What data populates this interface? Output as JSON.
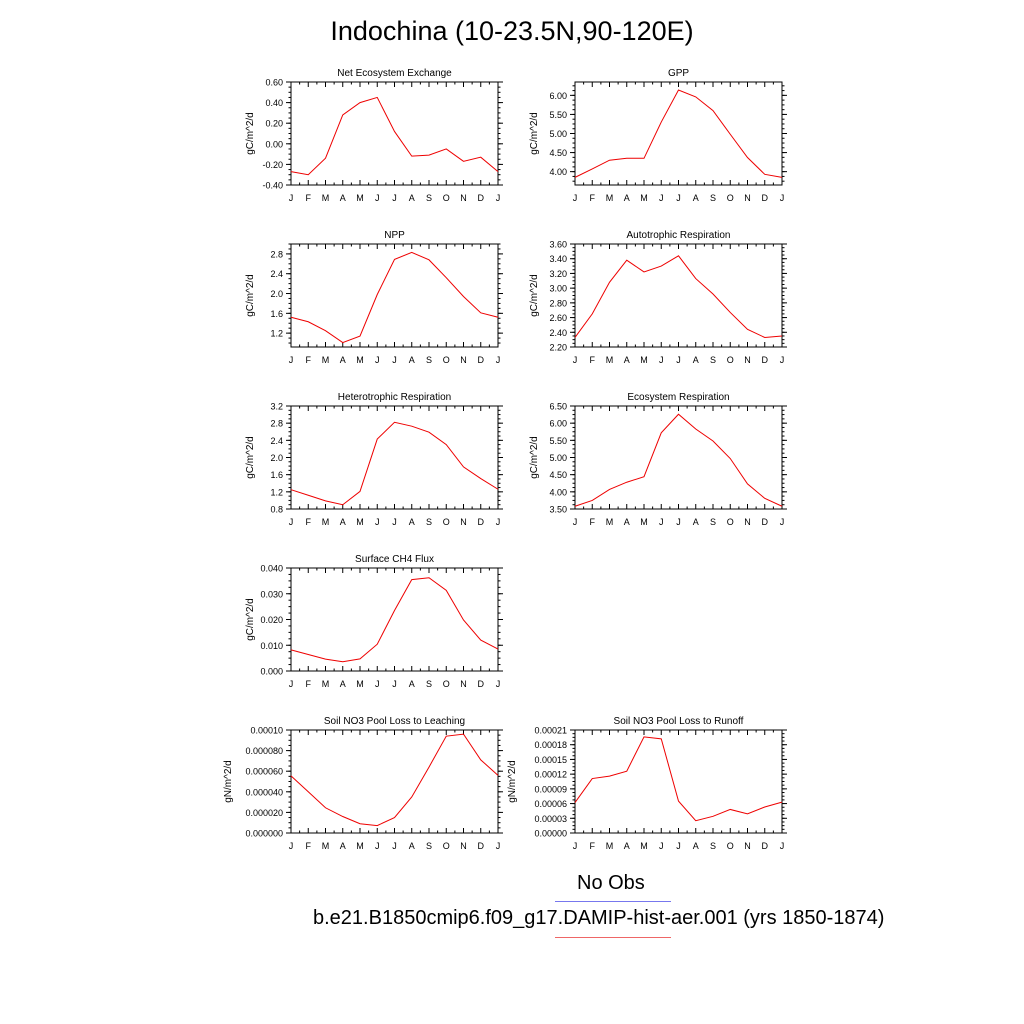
{
  "title": "Indochina (10-23.5N,90-120E)",
  "legend": {
    "obs_label": "No Obs",
    "case_label": "b.e21.B1850cmip6.f09_g17.DAMIP-hist-aer.001 (yrs 1850-1874)",
    "obs_color": "#7777ee",
    "case_color": "#ee6666"
  },
  "chart_data": [
    {
      "type": "line",
      "title": "Net Ecosystem Exchange",
      "ylabel": "gC/m^2/d",
      "categories": [
        "J",
        "F",
        "M",
        "A",
        "M",
        "J",
        "J",
        "A",
        "S",
        "O",
        "N",
        "D",
        "J"
      ],
      "values": [
        -0.27,
        -0.3,
        -0.14,
        0.28,
        0.4,
        0.45,
        0.12,
        -0.12,
        -0.11,
        -0.05,
        -0.17,
        -0.13,
        -0.27
      ],
      "ylim": [
        -0.4,
        0.6
      ],
      "yticks": [
        "-0.40",
        "-0.20",
        "0.00",
        "0.20",
        "0.40",
        "0.60"
      ],
      "line_color": "#ee0000"
    },
    {
      "type": "line",
      "title": "GPP",
      "ylabel": "gC/m^2/d",
      "categories": [
        "J",
        "F",
        "M",
        "A",
        "M",
        "J",
        "J",
        "A",
        "S",
        "O",
        "N",
        "D",
        "J"
      ],
      "values": [
        3.85,
        4.07,
        4.3,
        4.35,
        4.35,
        5.3,
        6.14,
        5.96,
        5.6,
        4.98,
        4.37,
        3.93,
        3.85
      ],
      "ylim": [
        3.65,
        6.35
      ],
      "yticks": [
        "4.00",
        "4.50",
        "5.00",
        "5.50",
        "6.00"
      ],
      "line_color": "#ee0000"
    },
    {
      "type": "line",
      "title": "NPP",
      "ylabel": "gC/m^2/d",
      "categories": [
        "J",
        "F",
        "M",
        "A",
        "M",
        "J",
        "J",
        "A",
        "S",
        "O",
        "N",
        "D",
        "J"
      ],
      "values": [
        1.52,
        1.43,
        1.25,
        1.01,
        1.14,
        1.98,
        2.69,
        2.83,
        2.68,
        2.32,
        1.94,
        1.61,
        1.52
      ],
      "ylim": [
        0.92,
        3.0
      ],
      "yticks": [
        "1.2",
        "1.6",
        "2.0",
        "2.4",
        "2.8"
      ],
      "line_color": "#ee0000"
    },
    {
      "type": "line",
      "title": "Autotrophic Respiration",
      "ylabel": "gC/m^2/d",
      "categories": [
        "J",
        "F",
        "M",
        "A",
        "M",
        "J",
        "J",
        "A",
        "S",
        "O",
        "N",
        "D",
        "J"
      ],
      "values": [
        2.33,
        2.65,
        3.08,
        3.38,
        3.22,
        3.3,
        3.44,
        3.13,
        2.92,
        2.67,
        2.44,
        2.33,
        2.35
      ],
      "ylim": [
        2.2,
        3.6
      ],
      "yticks": [
        "2.20",
        "2.40",
        "2.60",
        "2.80",
        "3.00",
        "3.20",
        "3.40",
        "3.60"
      ],
      "line_color": "#ee0000"
    },
    {
      "type": "line",
      "title": "Heterotrophic Respiration",
      "ylabel": "gC/m^2/d",
      "categories": [
        "J",
        "F",
        "M",
        "A",
        "M",
        "J",
        "J",
        "A",
        "S",
        "O",
        "N",
        "D",
        "J"
      ],
      "values": [
        1.25,
        1.12,
        0.99,
        0.9,
        1.21,
        2.43,
        2.82,
        2.73,
        2.59,
        2.3,
        1.78,
        1.51,
        1.26
      ],
      "ylim": [
        0.8,
        3.2
      ],
      "yticks": [
        "0.8",
        "1.2",
        "1.6",
        "2.0",
        "2.4",
        "2.8",
        "3.2"
      ],
      "line_color": "#ee0000"
    },
    {
      "type": "line",
      "title": "Ecosystem Respiration",
      "ylabel": "gC/m^2/d",
      "categories": [
        "J",
        "F",
        "M",
        "A",
        "M",
        "J",
        "J",
        "A",
        "S",
        "O",
        "N",
        "D",
        "J"
      ],
      "values": [
        3.58,
        3.75,
        4.07,
        4.28,
        4.44,
        5.72,
        6.26,
        5.83,
        5.48,
        4.97,
        4.23,
        3.81,
        3.58
      ],
      "ylim": [
        3.5,
        6.5
      ],
      "yticks": [
        "3.50",
        "4.00",
        "4.50",
        "5.00",
        "5.50",
        "6.00",
        "6.50"
      ],
      "line_color": "#ee0000"
    },
    {
      "type": "line",
      "title": "Surface CH4 Flux",
      "ylabel": "gC/m^2/d",
      "categories": [
        "J",
        "F",
        "M",
        "A",
        "M",
        "J",
        "J",
        "A",
        "S",
        "O",
        "N",
        "D",
        "J"
      ],
      "values": [
        0.0082,
        0.0064,
        0.0046,
        0.0036,
        0.0047,
        0.0104,
        0.0235,
        0.0355,
        0.0362,
        0.0313,
        0.0198,
        0.012,
        0.0085
      ],
      "ylim": [
        0.0,
        0.04
      ],
      "yticks": [
        "0.000",
        "0.010",
        "0.020",
        "0.030",
        "0.040"
      ],
      "line_color": "#ee0000"
    },
    {
      "type": "line",
      "title": "Soil NO3 Pool Loss to Leaching",
      "ylabel": "gN/m^2/d",
      "categories": [
        "J",
        "F",
        "M",
        "A",
        "M",
        "J",
        "J",
        "A",
        "S",
        "O",
        "N",
        "D",
        "J"
      ],
      "values": [
        5.55e-05,
        4e-05,
        2.45e-05,
        1.6e-05,
        9e-06,
        7.2e-06,
        1.5e-05,
        3.5e-05,
        6.4e-05,
        9.4e-05,
        9.6e-05,
        7.1e-05,
        5.6e-05
      ],
      "ylim": [
        0.0,
        0.0001
      ],
      "yticks": [
        "0.000000",
        "0.000020",
        "0.000040",
        "0.000060",
        "0.000080",
        "0.00010"
      ],
      "line_color": "#ee0000"
    },
    {
      "type": "line",
      "title": "Soil NO3 Pool Loss to Runoff",
      "ylabel": "gN/m^2/d",
      "categories": [
        "J",
        "F",
        "M",
        "A",
        "M",
        "J",
        "J",
        "A",
        "S",
        "O",
        "N",
        "D",
        "J"
      ],
      "values": [
        6.2e-05,
        0.000111,
        0.000116,
        0.000126,
        0.000196,
        0.000192,
        6.5e-05,
        2.5e-05,
        3.4e-05,
        4.8e-05,
        3.9e-05,
        5.3e-05,
        6.3e-05
      ],
      "ylim": [
        0.0,
        0.00021
      ],
      "yticks": [
        "0.00000",
        "0.00003",
        "0.00006",
        "0.00009",
        "0.00012",
        "0.00015",
        "0.00018",
        "0.00021"
      ],
      "line_color": "#ee0000"
    }
  ]
}
